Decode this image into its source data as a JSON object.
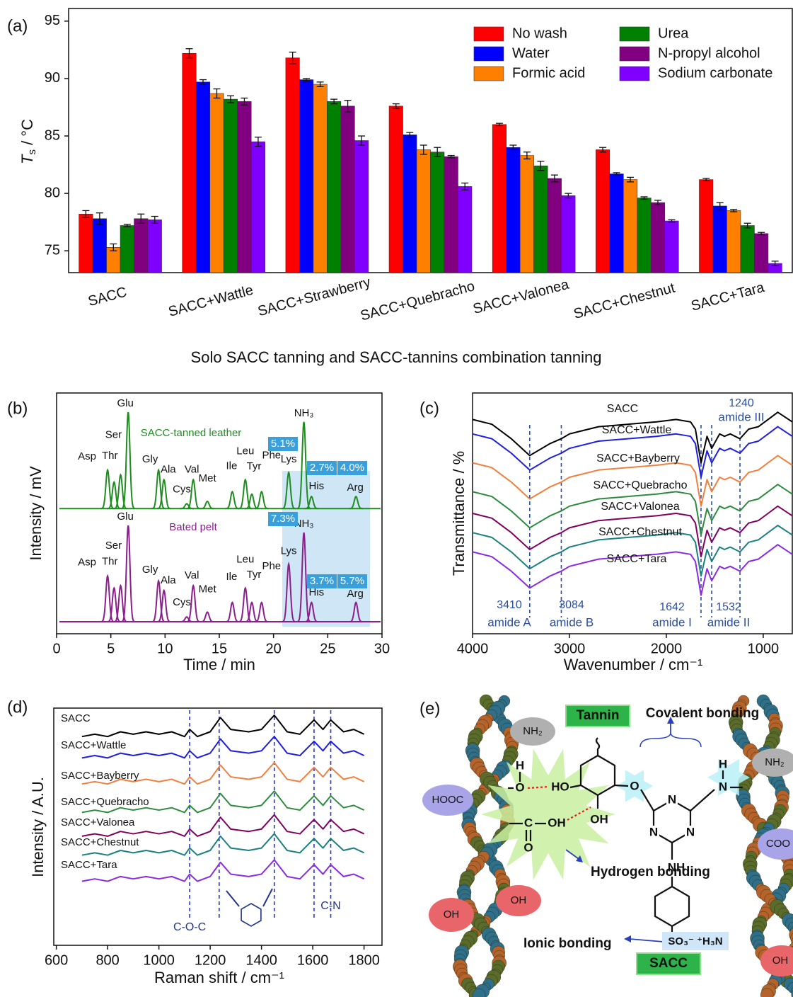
{
  "chart_data": [
    {
      "type": "bar",
      "panel_label": "(a)",
      "xlabel": "Solo SACC tanning and SACC-tannins combination tanning",
      "ylabel": {
        "symbol": "T",
        "subscript": "s",
        "unit": " / °C"
      },
      "categories": [
        "SACC",
        "SACC+Wattle",
        "SACC+Strawberry",
        "SACC+Quebracho",
        "SACC+Valonea",
        "SACC+Chestnut",
        "SACC+Tara"
      ],
      "series": [
        {
          "name": "No wash",
          "color": "#ff0000",
          "values": [
            78.2,
            92.2,
            91.8,
            87.6,
            86.0,
            83.8,
            81.2
          ],
          "errors": [
            0.3,
            0.4,
            0.5,
            0.2,
            0.1,
            0.2,
            0.1
          ]
        },
        {
          "name": "Water",
          "color": "#0000ff",
          "values": [
            77.8,
            89.7,
            89.9,
            85.1,
            84.0,
            81.7,
            78.9
          ],
          "errors": [
            0.5,
            0.2,
            0.1,
            0.2,
            0.2,
            0.1,
            0.3
          ]
        },
        {
          "name": "Formic acid",
          "color": "#ff8000",
          "values": [
            75.3,
            88.7,
            89.5,
            83.8,
            83.3,
            81.2,
            78.5
          ],
          "errors": [
            0.3,
            0.4,
            0.2,
            0.4,
            0.3,
            0.2,
            0.1
          ]
        },
        {
          "name": "Urea",
          "color": "#008000",
          "values": [
            77.2,
            88.2,
            88.0,
            83.6,
            82.4,
            79.6,
            77.2
          ],
          "errors": [
            0.1,
            0.3,
            0.2,
            0.4,
            0.4,
            0.1,
            0.2
          ]
        },
        {
          "name": "N-propyl alcohol",
          "color": "#800080",
          "values": [
            77.8,
            88.0,
            87.6,
            83.2,
            81.3,
            79.2,
            76.5
          ],
          "errors": [
            0.4,
            0.3,
            0.5,
            0.1,
            0.3,
            0.2,
            0.1
          ]
        },
        {
          "name": "Sodium carbonate",
          "color": "#8000ff",
          "values": [
            77.7,
            84.5,
            84.6,
            80.6,
            79.8,
            77.6,
            73.9
          ],
          "errors": [
            0.3,
            0.4,
            0.4,
            0.3,
            0.2,
            0.1,
            0.2
          ]
        }
      ],
      "ylim": [
        73.1,
        96.1
      ],
      "yticks": [
        75,
        80,
        85,
        90,
        95
      ],
      "legend": "upper right"
    },
    {
      "type": "chromatogram",
      "panel_label": "(b)",
      "xlabel": "Time / min",
      "ylabel": "Intensity / mV",
      "xlim": [
        0,
        30
      ],
      "xticks": [
        0,
        5,
        10,
        15,
        20,
        25,
        30
      ],
      "ylim": [
        0,
        100
      ],
      "shaded_range": [
        20.8,
        28.9
      ],
      "series": [
        {
          "name": "SACC-tanned leather",
          "color": "#1e8c1e",
          "baseline": 52,
          "box_labels": [
            "5.1%",
            "2.7%",
            "4.0%"
          ],
          "peaks": [
            {
              "label": "Asp",
              "time": 4.7,
              "height": 68
            },
            {
              "label": "Thr",
              "time": 5.3,
              "height": 63
            },
            {
              "label": "Ser",
              "time": 5.9,
              "height": 66
            },
            {
              "label": "Glu",
              "time": 6.6,
              "height": 92
            },
            {
              "label": "Gly",
              "time": 9.4,
              "height": 68
            },
            {
              "label": "Ala",
              "time": 9.9,
              "height": 64
            },
            {
              "label": "Cys",
              "time": 12.0,
              "height": 54
            },
            {
              "label": "Val",
              "time": 12.6,
              "height": 64
            },
            {
              "label": "Met",
              "time": 13.9,
              "height": 55
            },
            {
              "label": "Ile",
              "time": 16.2,
              "height": 59
            },
            {
              "label": "Leu",
              "time": 17.4,
              "height": 64
            },
            {
              "label": "Tyr",
              "time": 18.0,
              "height": 58
            },
            {
              "label": "Phe",
              "time": 18.9,
              "height": 59
            },
            {
              "label": "Lys",
              "time": 21.4,
              "height": 67
            },
            {
              "label": "NH₃",
              "time": 22.8,
              "height": 88
            },
            {
              "label": "His",
              "time": 23.5,
              "height": 57
            },
            {
              "label": "Arg",
              "time": 27.6,
              "height": 57
            }
          ]
        },
        {
          "name": "Bated pelt",
          "color": "#8c1e8c",
          "baseline": 5,
          "box_labels": [
            "7.3%",
            "3.7%",
            "5.7%"
          ],
          "peaks": [
            {
              "label": "Asp",
              "time": 4.7,
              "height": 24
            },
            {
              "label": "Thr",
              "time": 5.3,
              "height": 19
            },
            {
              "label": "Ser",
              "time": 5.9,
              "height": 20
            },
            {
              "label": "Glu",
              "time": 6.6,
              "height": 45
            },
            {
              "label": "Gly",
              "time": 9.4,
              "height": 22
            },
            {
              "label": "Ala",
              "time": 9.9,
              "height": 18
            },
            {
              "label": "Cys",
              "time": 12.0,
              "height": 7
            },
            {
              "label": "Val",
              "time": 12.6,
              "height": 20
            },
            {
              "label": "Met",
              "time": 13.9,
              "height": 9
            },
            {
              "label": "Ile",
              "time": 16.2,
              "height": 13
            },
            {
              "label": "Leu",
              "time": 17.4,
              "height": 19
            },
            {
              "label": "Tyr",
              "time": 18.0,
              "height": 13
            },
            {
              "label": "Phe",
              "time": 18.9,
              "height": 13
            },
            {
              "label": "Lys",
              "time": 21.4,
              "height": 29
            },
            {
              "label": "NH₃",
              "time": 22.8,
              "height": 42
            },
            {
              "label": "His",
              "time": 23.5,
              "height": 13
            },
            {
              "label": "Arg",
              "time": 27.6,
              "height": 13
            }
          ]
        }
      ]
    },
    {
      "type": "line",
      "panel_label": "(c)",
      "xlabel": "Wavenumber / cm⁻¹",
      "ylabel": "Transmittance / %",
      "xlim": [
        4000,
        700
      ],
      "xticks": [
        4000,
        3000,
        2000,
        1000
      ],
      "ylim": [
        0,
        100
      ],
      "markers": [
        3410,
        3084,
        1642,
        1532,
        1240
      ],
      "marker_names": [
        "amide A",
        "amide B",
        "amide I",
        "amide II",
        "amide III"
      ],
      "x": [
        4000,
        3800,
        3600,
        3410,
        3200,
        3084,
        3000,
        2900,
        2700,
        2400,
        2100,
        1900,
        1750,
        1700,
        1642,
        1580,
        1532,
        1450,
        1400,
        1340,
        1240,
        1150,
        1050,
        950,
        850,
        700
      ],
      "series": [
        {
          "name": "SACC",
          "color": "#000000",
          "values": [
            89,
            87,
            81,
            74,
            79,
            81,
            83,
            84,
            86,
            87,
            88,
            89,
            88,
            85,
            71,
            82,
            77,
            83,
            82,
            83,
            81,
            85,
            86,
            89,
            92,
            88
          ]
        },
        {
          "name": "SACC+Wattle",
          "color": "#1f1fe0",
          "values": [
            83,
            81,
            75,
            68,
            73,
            75,
            77,
            78,
            80,
            81,
            82,
            83,
            82,
            79,
            65,
            76,
            71,
            77,
            76,
            77,
            75,
            79,
            80,
            83,
            86,
            82
          ]
        },
        {
          "name": "SACC+Bayberry",
          "color": "#f08040",
          "values": [
            71,
            69,
            63,
            56,
            61,
            63,
            65,
            66,
            68,
            69,
            70,
            71,
            70,
            67,
            53,
            64,
            59,
            65,
            64,
            65,
            63,
            67,
            68,
            71,
            74,
            70
          ]
        },
        {
          "name": "SACC+Quebracho",
          "color": "#2e8b3e",
          "values": [
            59,
            57,
            51,
            44,
            49,
            51,
            53,
            54,
            56,
            57,
            58,
            59,
            58,
            55,
            41,
            52,
            47,
            53,
            52,
            53,
            51,
            55,
            56,
            59,
            62,
            58
          ]
        },
        {
          "name": "SACC+Valonea",
          "color": "#800060",
          "values": [
            50,
            48,
            42,
            35,
            40,
            42,
            44,
            45,
            47,
            48,
            49,
            50,
            49,
            46,
            32,
            43,
            38,
            44,
            43,
            44,
            42,
            46,
            47,
            50,
            53,
            49
          ]
        },
        {
          "name": "SACC+Chestnut",
          "color": "#1a8080",
          "values": [
            42,
            40,
            34,
            27,
            32,
            34,
            36,
            37,
            39,
            40,
            41,
            42,
            41,
            38,
            24,
            35,
            30,
            36,
            35,
            36,
            34,
            38,
            39,
            42,
            45,
            41
          ]
        },
        {
          "name": "SACC+Tara",
          "color": "#8a2be2",
          "values": [
            34,
            32,
            26,
            19,
            24,
            26,
            28,
            29,
            31,
            32,
            33,
            34,
            33,
            30,
            16,
            27,
            22,
            28,
            27,
            28,
            26,
            30,
            31,
            34,
            37,
            33
          ]
        }
      ]
    },
    {
      "type": "line",
      "panel_label": "(d)",
      "xlabel": "Raman shift / cm⁻¹",
      "ylabel": "Intensity / A.U.",
      "xlim": [
        590,
        1870
      ],
      "xticks": [
        600,
        800,
        1000,
        1200,
        1400,
        1600,
        1800
      ],
      "ylim": [
        0,
        100
      ],
      "markers": [
        1120,
        1235,
        1450,
        1605,
        1670
      ],
      "marker_labels": [
        "C-O-C",
        null,
        null,
        null,
        "C-N"
      ],
      "x": [
        700,
        750,
        800,
        850,
        900,
        950,
        1000,
        1050,
        1100,
        1120,
        1150,
        1200,
        1240,
        1280,
        1350,
        1400,
        1450,
        1500,
        1550,
        1605,
        1640,
        1670,
        1720,
        1760,
        1800
      ],
      "series": [
        {
          "name": "SACC",
          "color": "#000000",
          "values": [
            88,
            89,
            88,
            90,
            89,
            90,
            89,
            90,
            88,
            91,
            88,
            90,
            96,
            91,
            90,
            91,
            97,
            90,
            89,
            95,
            91,
            95,
            90,
            91,
            89
          ]
        },
        {
          "name": "SACC+Wattle",
          "color": "#1f1fe0",
          "values": [
            79,
            80,
            79,
            81,
            80,
            81,
            80,
            81,
            79,
            82,
            79,
            81,
            87,
            82,
            81,
            82,
            88,
            81,
            80,
            86,
            82,
            86,
            81,
            82,
            80
          ]
        },
        {
          "name": "SACC+Bayberry",
          "color": "#f08040",
          "values": [
            68,
            69,
            68,
            70,
            69,
            70,
            69,
            70,
            68,
            71,
            68,
            70,
            76,
            71,
            70,
            71,
            77,
            70,
            69,
            75,
            71,
            75,
            70,
            71,
            69
          ]
        },
        {
          "name": "SACC+Quebracho",
          "color": "#2e8b3e",
          "values": [
            56,
            57,
            56,
            58,
            57,
            58,
            57,
            58,
            56,
            59,
            56,
            58,
            64,
            59,
            58,
            59,
            65,
            58,
            57,
            63,
            59,
            63,
            58,
            59,
            57
          ]
        },
        {
          "name": "SACC+Valonea",
          "color": "#800060",
          "values": [
            46,
            47,
            46,
            48,
            47,
            48,
            47,
            48,
            46,
            49,
            46,
            48,
            54,
            49,
            48,
            49,
            55,
            48,
            47,
            53,
            49,
            53,
            48,
            49,
            47
          ]
        },
        {
          "name": "SACC+Chestnut",
          "color": "#1a8080",
          "values": [
            38,
            39,
            38,
            40,
            39,
            40,
            39,
            40,
            38,
            41,
            38,
            40,
            46,
            41,
            40,
            41,
            47,
            40,
            39,
            45,
            41,
            45,
            40,
            41,
            39
          ]
        },
        {
          "name": "SACC+Tara",
          "color": "#8a2be2",
          "values": [
            27,
            28,
            27,
            29,
            28,
            29,
            28,
            29,
            27,
            30,
            27,
            29,
            35,
            30,
            29,
            30,
            36,
            29,
            28,
            34,
            30,
            34,
            29,
            30,
            28
          ]
        }
      ]
    }
  ],
  "diagram": {
    "panel_label": "(e)",
    "tannin": "Tannin",
    "sacc": "SACC",
    "bonds": [
      "Covalent bonding",
      "Hydrogen bonding",
      "Ionic bonding"
    ],
    "collagen_groups": [
      "NH₂",
      "HOOC",
      "OH",
      "OH",
      "NH₂",
      "COO",
      "OH"
    ],
    "atoms": [
      "H",
      "O",
      "HO",
      "OH",
      "O",
      "N",
      "N",
      "N",
      "H",
      "N",
      "NH",
      "C",
      "OH",
      "O",
      "SO₃⁻ ⁺H₃N"
    ]
  }
}
